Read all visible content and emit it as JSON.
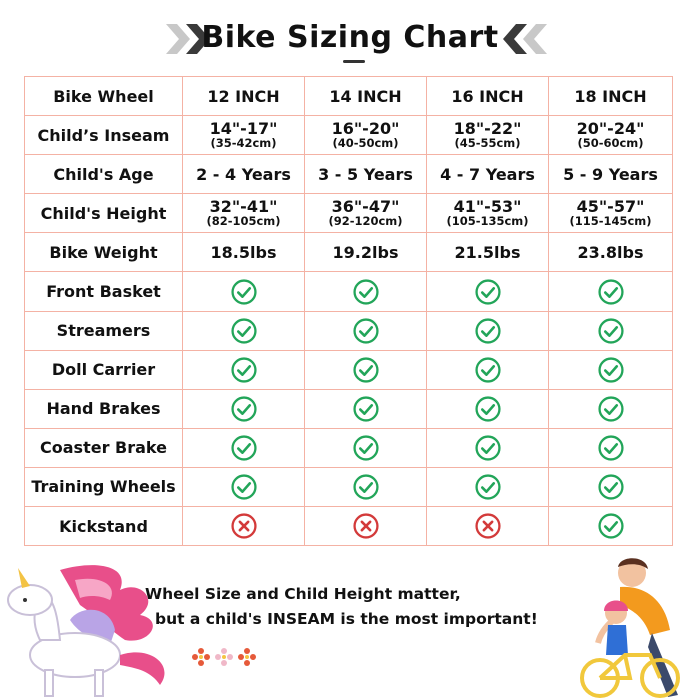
{
  "header": {
    "title": "Bike Sizing Chart"
  },
  "columns": [
    "Bike Wheel",
    "12 INCH",
    "14 INCH",
    "16 INCH",
    "18 INCH"
  ],
  "rows": [
    {
      "label": "Child’s Inseam",
      "type": "dual",
      "cells": [
        {
          "main": "14\"-17\"",
          "sub": "(35-42cm)"
        },
        {
          "main": "16\"-20\"",
          "sub": "(40-50cm)"
        },
        {
          "main": "18\"-22\"",
          "sub": "(45-55cm)"
        },
        {
          "main": "20\"-24\"",
          "sub": "(50-60cm)"
        }
      ]
    },
    {
      "label": "Child's Age",
      "type": "text",
      "cells": [
        "2 - 4 Years",
        "3 - 5 Years",
        "4 - 7 Years",
        "5 - 9 Years"
      ]
    },
    {
      "label": "Child's Height",
      "type": "dual",
      "cells": [
        {
          "main": "32\"-41\"",
          "sub": "(82-105cm)"
        },
        {
          "main": "36\"-47\"",
          "sub": "(92-120cm)"
        },
        {
          "main": "41\"-53\"",
          "sub": "(105-135cm)"
        },
        {
          "main": "45\"-57\"",
          "sub": "(115-145cm)"
        }
      ]
    },
    {
      "label": "Bike Weight",
      "type": "text",
      "cells": [
        "18.5lbs",
        "19.2lbs",
        "21.5lbs",
        "23.8lbs"
      ]
    },
    {
      "label": "Front Basket",
      "type": "bool",
      "cells": [
        true,
        true,
        true,
        true
      ]
    },
    {
      "label": "Streamers",
      "type": "bool",
      "cells": [
        true,
        true,
        true,
        true
      ]
    },
    {
      "label": "Doll Carrier",
      "type": "bool",
      "cells": [
        true,
        true,
        true,
        true
      ]
    },
    {
      "label": "Hand Brakes",
      "type": "bool",
      "cells": [
        true,
        true,
        true,
        true
      ]
    },
    {
      "label": "Coaster Brake",
      "type": "bool",
      "cells": [
        true,
        true,
        true,
        true
      ]
    },
    {
      "label": "Training Wheels",
      "type": "bool",
      "cells": [
        true,
        true,
        true,
        true
      ]
    },
    {
      "label": "Kickstand",
      "type": "bool",
      "cells": [
        false,
        false,
        false,
        true
      ]
    }
  ],
  "icons": {
    "yes": "check-circle-icon",
    "no": "cross-circle-icon",
    "yes_color": "#22a559",
    "no_color": "#d33a3a"
  },
  "colors": {
    "grid": "#f4b2a4"
  },
  "footer": {
    "line1": "Wheel Size and Child Height matter,",
    "line2": "but a child's INSEAM is the most important!"
  }
}
